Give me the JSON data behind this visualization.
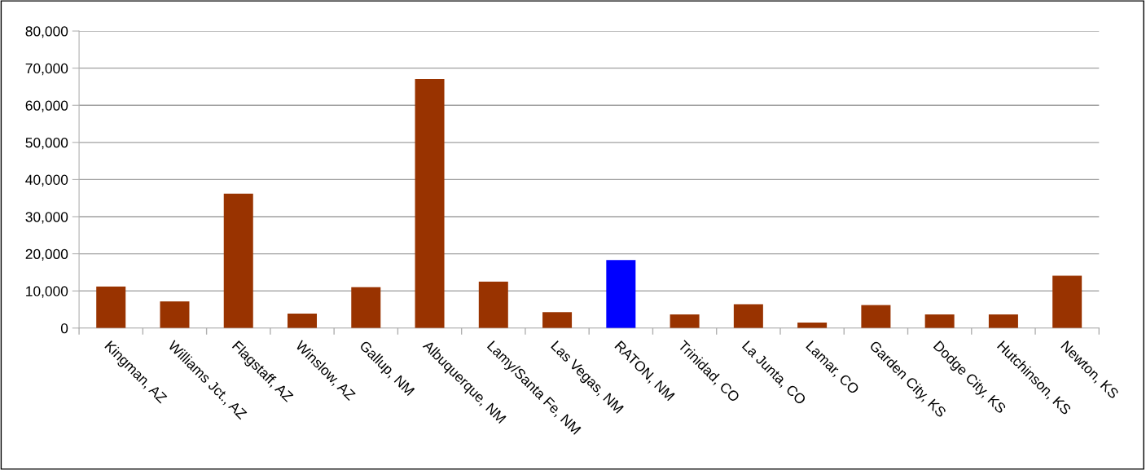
{
  "chart_data": {
    "type": "bar",
    "categories": [
      "Kingman, AZ",
      "Williams Jct., AZ",
      "Flagstaff, AZ",
      "Winslow, AZ",
      "Gallup, NM",
      "Albuquerque, NM",
      "Lamy/Santa Fe, NM",
      "Las Vegas, NM",
      "RATON, NM",
      "Trinidad, CO",
      "La Junta, CO",
      "Lamar, CO",
      "Garden City, KS",
      "Dodge City, KS",
      "Hutchinson, KS",
      "Newton, KS"
    ],
    "values": [
      11200,
      7200,
      36200,
      3900,
      11000,
      67100,
      12500,
      4300,
      18300,
      3700,
      6400,
      1500,
      6200,
      3700,
      3700,
      14100
    ],
    "colors": [
      "#993300",
      "#993300",
      "#993300",
      "#993300",
      "#993300",
      "#993300",
      "#993300",
      "#993300",
      "#0000ff",
      "#993300",
      "#993300",
      "#993300",
      "#993300",
      "#993300",
      "#993300",
      "#993300"
    ],
    "ylim": [
      0,
      80000
    ],
    "yticks": [
      {
        "value": 0,
        "label": "0"
      },
      {
        "value": 10000,
        "label": "10,000"
      },
      {
        "value": 20000,
        "label": "20,000"
      },
      {
        "value": 30000,
        "label": "30,000"
      },
      {
        "value": 40000,
        "label": "40,000"
      },
      {
        "value": 50000,
        "label": "50,000"
      },
      {
        "value": 60000,
        "label": "60,000"
      },
      {
        "value": 70000,
        "label": "70,000"
      },
      {
        "value": 80000,
        "label": "80,000"
      }
    ],
    "grid": "y",
    "legend": false
  }
}
